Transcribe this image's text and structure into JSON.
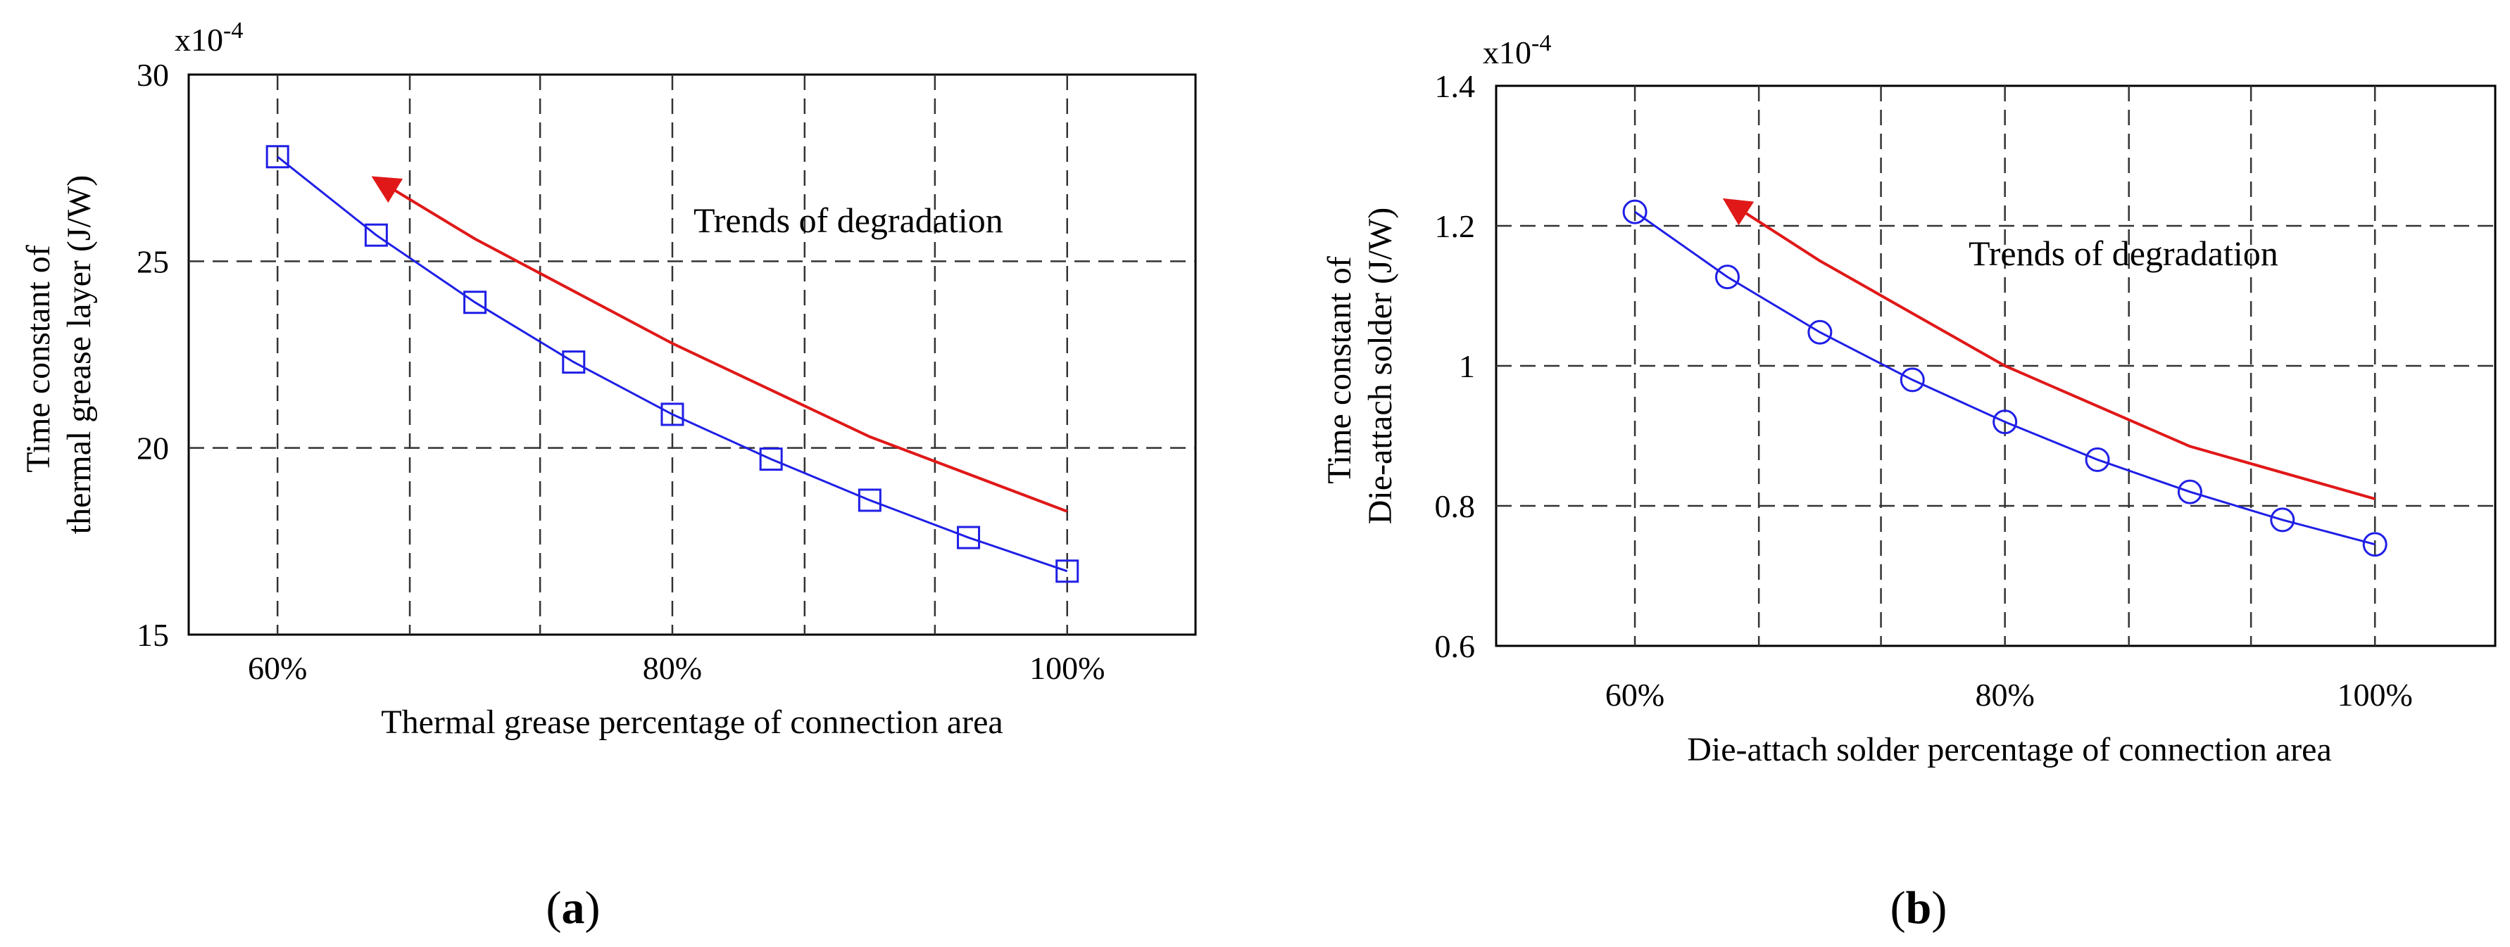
{
  "chart_data": [
    {
      "type": "line",
      "panel_label": "(a)",
      "panel_letter": "a",
      "exponent_base": "x10",
      "exponent_power": "-4",
      "ylabel_line1": "Time constant of",
      "ylabel_line2": "thermal grease layer (J/W)",
      "xlabel": "Thermal grease percentage of connection area",
      "annotation": "Trends of degradation",
      "xlim": [
        55.5,
        106.5
      ],
      "ylim": [
        15,
        30
      ],
      "xticks": [
        60,
        80,
        100
      ],
      "xtick_labels": [
        "60%",
        "80%",
        "100%"
      ],
      "yticks": [
        15,
        20,
        25,
        30
      ],
      "ytick_labels": [
        "15",
        "20",
        "25",
        "30"
      ],
      "grid_x": [
        60,
        66.7,
        73.3,
        80,
        86.7,
        93.3,
        100
      ],
      "grid_y": [
        20,
        25
      ],
      "marker": "square",
      "series": [
        {
          "name": "thermal grease layer",
          "color": "#1f1fe6",
          "x": [
            60,
            65,
            70,
            75,
            80,
            85,
            90,
            95,
            100
          ],
          "values": [
            27.8,
            25.7,
            23.9,
            22.3,
            20.9,
            19.7,
            18.6,
            17.6,
            16.7
          ]
        }
      ],
      "arrow": {
        "color": "#e01818",
        "x": [
          100,
          90,
          80,
          70,
          65
        ],
        "values": [
          18.3,
          20.3,
          22.8,
          25.6,
          27.2
        ]
      }
    },
    {
      "type": "line",
      "panel_label": "(b)",
      "panel_letter": "b",
      "exponent_base": "x10",
      "exponent_power": "-4",
      "ylabel_line1": "Time constant of",
      "ylabel_line2": "Die-attach solder (J/W)",
      "xlabel": "Die-attach solder percentage of connection area",
      "annotation": "Trends of degradation",
      "xlim": [
        52.5,
        106.5
      ],
      "ylim": [
        0.6,
        1.4
      ],
      "xticks": [
        60,
        80,
        100
      ],
      "xtick_labels": [
        "60%",
        "80%",
        "100%"
      ],
      "yticks": [
        0.6,
        0.8,
        1,
        1.2,
        1.4
      ],
      "ytick_labels": [
        "0.6",
        "0.8",
        "1",
        "1.2",
        "1.4"
      ],
      "grid_x": [
        60,
        66.7,
        73.3,
        80,
        86.7,
        93.3,
        100
      ],
      "grid_y": [
        0.8,
        1.0,
        1.2
      ],
      "marker": "circle",
      "series": [
        {
          "name": "die-attach solder",
          "color": "#1f1fe6",
          "x": [
            60,
            65,
            70,
            75,
            80,
            85,
            90,
            95,
            100
          ],
          "values": [
            1.22,
            1.127,
            1.048,
            0.98,
            0.92,
            0.866,
            0.82,
            0.78,
            0.745
          ]
        }
      ],
      "arrow": {
        "color": "#e01818",
        "x": [
          100,
          90,
          80,
          70,
          65
        ],
        "values": [
          0.81,
          0.885,
          1.0,
          1.15,
          1.235
        ]
      }
    }
  ]
}
